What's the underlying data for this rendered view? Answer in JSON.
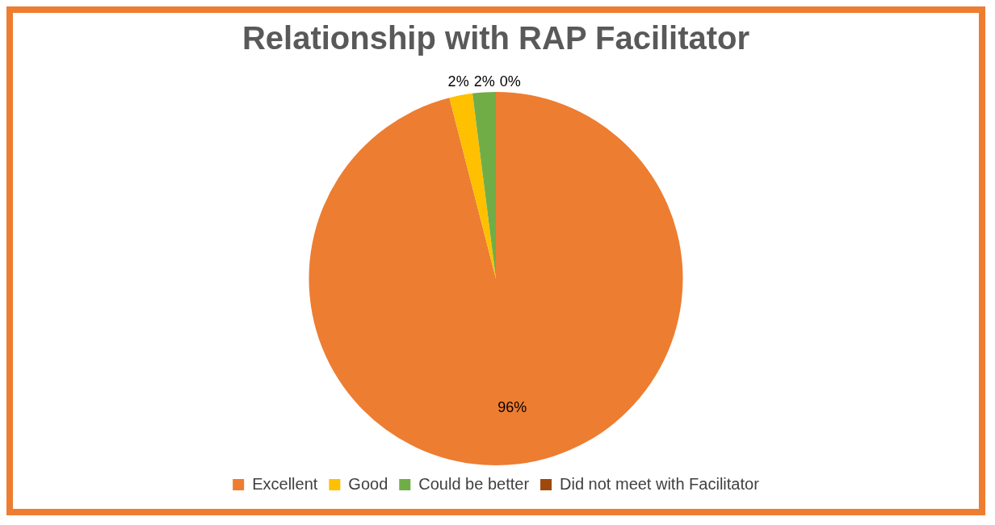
{
  "chart_data": {
    "type": "pie",
    "title": "Relationship with RAP Facilitator",
    "categories": [
      "Excellent",
      "Good",
      "Could be better",
      "Did not meet with Facilitator"
    ],
    "values": [
      96,
      2,
      2,
      0
    ],
    "colors": [
      "#ed7d31",
      "#ffc000",
      "#70ad47",
      "#9e480e"
    ],
    "value_labels": [
      "96%",
      "2%",
      "2%",
      "0%"
    ],
    "legend": "bottom"
  }
}
